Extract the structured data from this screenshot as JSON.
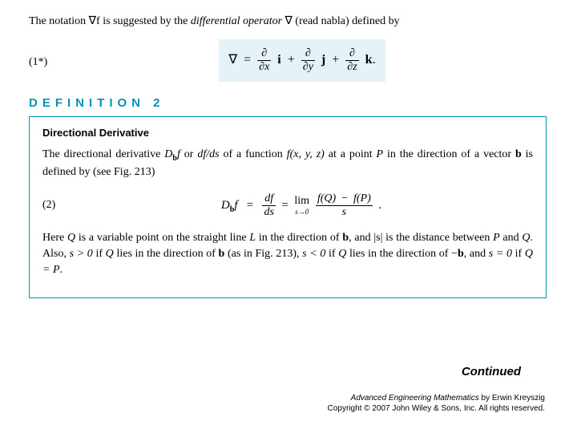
{
  "intro": {
    "prefix": "The notation ",
    "gradf": "∇f",
    "mid": " is suggested by the ",
    "diffop": "differential operator",
    "nabla": " ∇ (read nabla) defined by"
  },
  "eq1": {
    "label": "(1*)",
    "lhs": "∇",
    "eq": "=",
    "p1": {
      "num": "∂",
      "den": "∂x"
    },
    "v1": "i",
    "p2": {
      "num": "∂",
      "den": "∂y"
    },
    "v2": "j",
    "p3": {
      "num": "∂",
      "den": "∂z"
    },
    "v3": "k",
    "plus": "+",
    "dot": "."
  },
  "def_header": "DEFINITION 2",
  "def_title": "Directional Derivative",
  "para1": {
    "a": "The directional derivative ",
    "Db": "D",
    "bsub": "b",
    "f": "f",
    "b": " or ",
    "dfds": {
      "num": "df",
      "den": "ds"
    },
    "dfds_text": "df/ds",
    "c": " of a function ",
    "fn": "f(x, y, z)",
    "d": " at a point ",
    "P": "P",
    "e": " in the direction of a vector ",
    "vecb": "b",
    "f2": " is defined by (see Fig. 213)"
  },
  "eq2": {
    "label": "(2)",
    "lhs_D": "D",
    "lhs_b": "b",
    "lhs_f": "f",
    "eq": "=",
    "frac1": {
      "num": "df",
      "den": "ds"
    },
    "lim": "lim",
    "limsub": "s→0",
    "frac2": {
      "num_a": "f(Q)",
      "minus": "−",
      "num_b": "f(P)",
      "den": "s"
    },
    "dot": "."
  },
  "para2": {
    "a": "Here ",
    "Q": "Q",
    "b": " is a variable point on the straight line ",
    "L": "L",
    "c": " in the direction of ",
    "vecb": "b",
    "d": ", and ",
    "abss": "|s|",
    "e": " is the distance between ",
    "P": "P",
    "f": " and ",
    "g": ". Also, ",
    "sgt0": "s > 0",
    "h": " if ",
    "i": " lies in the direction of ",
    "j": " (as in Fig. 213), ",
    "slt0": "s < 0",
    "k": " if ",
    "l": " lies in the direction of ",
    "negb": "−b",
    "m": ", and ",
    "seq0": "s = 0",
    "n": " if ",
    "QeqP": "Q = P",
    "o": "."
  },
  "continued": "Continued",
  "footer": {
    "book": "Advanced Engineering Mathematics",
    "by": " by Erwin Kreyszig",
    "copyright": "Copyright © 2007 John Wiley & Sons, Inc.  All rights reserved."
  },
  "colors": {
    "accent": "#0093b8",
    "highlight_bg": "#e5f3f8",
    "text": "#000000",
    "page_bg": "#ffffff"
  }
}
